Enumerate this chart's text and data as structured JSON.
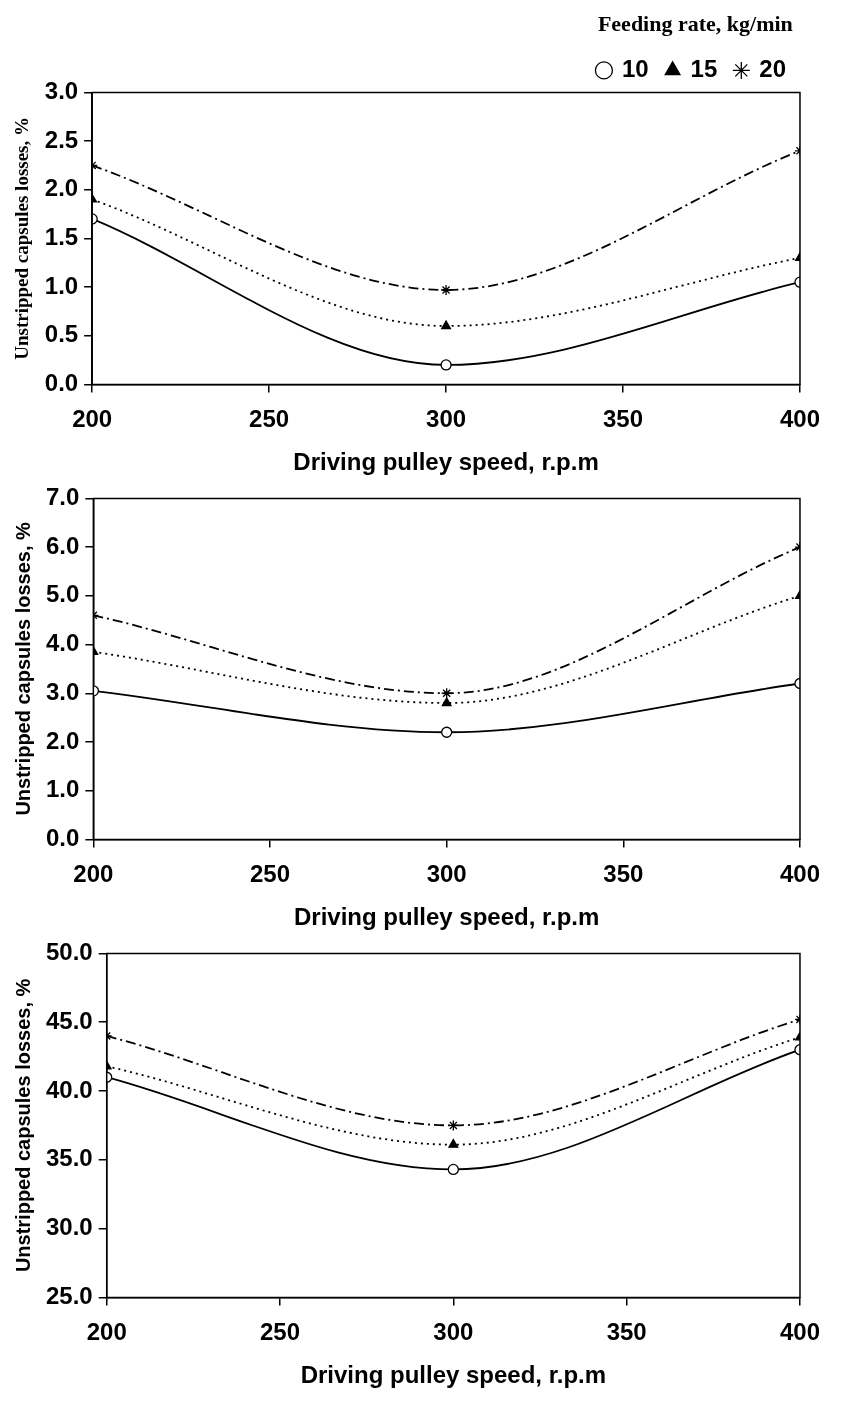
{
  "chart_data": [
    {
      "type": "line",
      "xlabel": "Driving pulley speed, r.p.m",
      "ylabel": "Unstripped capsules losses, %",
      "legend_title": "Feeding rate, kg/min",
      "legend": "top",
      "grid": false,
      "x": [
        200,
        300,
        400
      ],
      "xlim": [
        200,
        400
      ],
      "xticks": [
        200,
        250,
        300,
        350,
        400
      ],
      "ylim": [
        0,
        3
      ],
      "yticks": [
        {
          "value": 0,
          "label": "0.0"
        },
        {
          "value": 0.5,
          "label": "0.5"
        },
        {
          "value": 1,
          "label": "1.0"
        },
        {
          "value": 1.5,
          "label": "1.5"
        },
        {
          "value": 2,
          "label": "2.0"
        },
        {
          "value": 2.5,
          "label": "2.5"
        },
        {
          "value": 3,
          "label": "3.0"
        }
      ],
      "series": [
        {
          "name": "10",
          "color": "#000000",
          "marker": "circle",
          "line_style": "solid",
          "values": [
            1.7,
            0.2,
            1.05
          ]
        },
        {
          "name": "15",
          "color": "#000000",
          "marker": "triangle",
          "line_style": "dotted",
          "values": [
            1.9,
            0.6,
            1.3
          ]
        },
        {
          "name": "20",
          "color": "#000000",
          "marker": "cross",
          "line_style": "dashed",
          "values": [
            2.25,
            0.97,
            2.4
          ]
        }
      ]
    },
    {
      "type": "line",
      "xlabel": "Driving pulley speed, r.p.m",
      "ylabel": "Unstripped capsules losses, %",
      "legend": false,
      "grid": false,
      "x": [
        200,
        300,
        400
      ],
      "xlim": [
        200,
        400
      ],
      "xticks": [
        200,
        250,
        300,
        350,
        400
      ],
      "ylim": [
        0,
        7
      ],
      "yticks": [
        {
          "value": 0,
          "label": "0.0"
        },
        {
          "value": 1,
          "label": "1.0"
        },
        {
          "value": 2,
          "label": "2.0"
        },
        {
          "value": 3,
          "label": "3.0"
        },
        {
          "value": 4,
          "label": "4.0"
        },
        {
          "value": 5,
          "label": "5.0"
        },
        {
          "value": 6,
          "label": "6.0"
        },
        {
          "value": 7,
          "label": "7.0"
        }
      ],
      "series": [
        {
          "color": "#000000",
          "marker": "circle",
          "line_style": "solid",
          "values": [
            3.05,
            2.2,
            3.2
          ]
        },
        {
          "color": "#000000",
          "marker": "triangle",
          "line_style": "dotted",
          "values": [
            3.85,
            2.8,
            5.0
          ]
        },
        {
          "color": "#000000",
          "marker": "cross",
          "line_style": "dashed",
          "values": [
            4.6,
            3.0,
            6.0
          ]
        }
      ]
    },
    {
      "type": "line",
      "xlabel": "Driving pulley speed, r.p.m",
      "ylabel": "Unstripped capsules losses, %",
      "legend": false,
      "grid": false,
      "x": [
        200,
        300,
        400
      ],
      "xlim": [
        200,
        400
      ],
      "xticks": [
        200,
        250,
        300,
        350,
        400
      ],
      "ylim": [
        25,
        50
      ],
      "yticks": [
        {
          "value": 25,
          "label": "25.0"
        },
        {
          "value": 30,
          "label": "30.0"
        },
        {
          "value": 35,
          "label": "35.0"
        },
        {
          "value": 40,
          "label": "40.0"
        },
        {
          "value": 45,
          "label": "45.0"
        },
        {
          "value": 50,
          "label": "50.0"
        }
      ],
      "series": [
        {
          "color": "#000000",
          "marker": "circle",
          "line_style": "solid",
          "values": [
            41.0,
            34.3,
            43.0
          ]
        },
        {
          "color": "#000000",
          "marker": "triangle",
          "line_style": "dotted",
          "values": [
            41.8,
            36.1,
            43.9
          ]
        },
        {
          "color": "#000000",
          "marker": "cross",
          "line_style": "dashed",
          "values": [
            44.0,
            37.5,
            45.2
          ]
        }
      ]
    }
  ]
}
